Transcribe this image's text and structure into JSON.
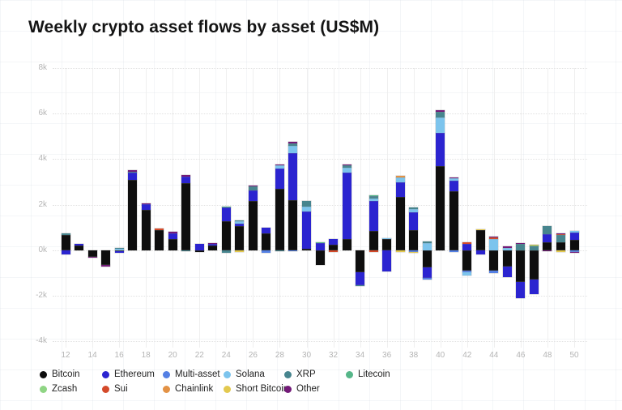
{
  "title": "Weekly crypto asset flows by asset (US$M)",
  "chart_data": {
    "type": "bar",
    "stacked": true,
    "title": "Weekly crypto asset flows by asset (US$M)",
    "units": "US$M",
    "x_axis": "week number",
    "x": [
      12,
      13,
      14,
      15,
      16,
      17,
      18,
      19,
      20,
      21,
      22,
      23,
      24,
      25,
      26,
      27,
      28,
      29,
      30,
      31,
      32,
      33,
      34,
      35,
      36,
      37,
      38,
      39,
      40,
      41,
      42,
      43,
      44,
      45,
      46,
      47,
      48,
      49,
      50
    ],
    "x_tick_labels": [
      12,
      14,
      16,
      18,
      20,
      22,
      24,
      26,
      28,
      30,
      32,
      34,
      36,
      38,
      40,
      42,
      44,
      46,
      48,
      50
    ],
    "ylim": [
      -4000,
      8000
    ],
    "y_ticks": [
      {
        "value": 8000,
        "label": "8k"
      },
      {
        "value": 6000,
        "label": "6k"
      },
      {
        "value": 4000,
        "label": "4k"
      },
      {
        "value": 2000,
        "label": "2k"
      },
      {
        "value": 0,
        "label": "0k"
      },
      {
        "value": -2000,
        "label": "-2k"
      },
      {
        "value": -4000,
        "label": "-4k"
      }
    ],
    "grid": true,
    "legend_position": "bottom",
    "series": [
      {
        "name": "Bitcoin",
        "color": "#0e0e0e",
        "values": [
          670,
          200,
          -290,
          -670,
          -30,
          3100,
          1780,
          880,
          470,
          2950,
          -70,
          200,
          1280,
          1050,
          2150,
          730,
          2700,
          2200,
          50,
          -650,
          240,
          500,
          -980,
          850,
          490,
          2330,
          870,
          -770,
          3680,
          2590,
          -900,
          880,
          -900,
          -720,
          -1400,
          -1300,
          330,
          350,
          440
        ]
      },
      {
        "name": "Ethereum",
        "color": "#2b24d0",
        "values": [
          -200,
          70,
          0,
          0,
          -80,
          300,
          230,
          0,
          270,
          280,
          270,
          90,
          600,
          130,
          470,
          260,
          900,
          2050,
          1650,
          300,
          230,
          2900,
          -550,
          1300,
          -950,
          640,
          790,
          -450,
          1470,
          470,
          280,
          -180,
          0,
          -450,
          -700,
          -650,
          370,
          0,
          340
        ]
      },
      {
        "name": "Multi-asset",
        "color": "#5480e4",
        "values": [
          0,
          0,
          0,
          0,
          0,
          0,
          0,
          0,
          0,
          0,
          0,
          0,
          0,
          0,
          0,
          -130,
          0,
          -50,
          0,
          0,
          0,
          0,
          0,
          0,
          0,
          0,
          -80,
          -80,
          0,
          -100,
          -80,
          0,
          -100,
          0,
          0,
          0,
          0,
          0,
          -100
        ]
      },
      {
        "name": "Solana",
        "color": "#7cc4ed",
        "values": [
          0,
          0,
          0,
          0,
          50,
          0,
          0,
          0,
          0,
          0,
          0,
          0,
          0,
          80,
          0,
          0,
          120,
          320,
          200,
          0,
          0,
          220,
          0,
          120,
          50,
          230,
          150,
          300,
          680,
          100,
          -120,
          0,
          500,
          100,
          0,
          0,
          0,
          0,
          60
        ]
      },
      {
        "name": "XRP",
        "color": "#47858e",
        "values": [
          60,
          0,
          0,
          0,
          60,
          50,
          0,
          0,
          0,
          -60,
          0,
          0,
          -120,
          50,
          170,
          0,
          -60,
          120,
          250,
          0,
          0,
          120,
          -50,
          100,
          0,
          0,
          60,
          80,
          240,
          0,
          0,
          0,
          0,
          0,
          280,
          150,
          350,
          300,
          0
        ]
      },
      {
        "name": "Litecoin",
        "color": "#56b689",
        "values": [
          0,
          0,
          0,
          0,
          0,
          0,
          0,
          0,
          0,
          0,
          0,
          0,
          40,
          0,
          0,
          0,
          0,
          0,
          0,
          30,
          0,
          0,
          0,
          40,
          0,
          0,
          0,
          0,
          0,
          0,
          0,
          0,
          0,
          0,
          0,
          40,
          0,
          0,
          0
        ]
      },
      {
        "name": "Zcash",
        "color": "#8fd584",
        "values": [
          0,
          0,
          0,
          0,
          0,
          0,
          0,
          0,
          0,
          0,
          0,
          0,
          0,
          0,
          0,
          0,
          0,
          0,
          0,
          0,
          0,
          0,
          0,
          0,
          0,
          0,
          0,
          0,
          0,
          0,
          0,
          0,
          0,
          0,
          0,
          0,
          0,
          0,
          0
        ]
      },
      {
        "name": "Sui",
        "color": "#d44a2a",
        "values": [
          0,
          0,
          0,
          0,
          0,
          0,
          0,
          70,
          0,
          0,
          0,
          0,
          0,
          0,
          0,
          0,
          0,
          0,
          0,
          0,
          -70,
          0,
          0,
          -70,
          0,
          0,
          0,
          0,
          0,
          0,
          50,
          0,
          50,
          0,
          0,
          0,
          0,
          40,
          0
        ]
      },
      {
        "name": "Chainlink",
        "color": "#e39245",
        "values": [
          0,
          0,
          0,
          0,
          0,
          0,
          0,
          0,
          0,
          0,
          0,
          0,
          0,
          0,
          0,
          0,
          0,
          0,
          0,
          0,
          0,
          0,
          0,
          0,
          0,
          70,
          0,
          0,
          0,
          0,
          0,
          0,
          0,
          0,
          0,
          0,
          0,
          0,
          0
        ]
      },
      {
        "name": "Short Bitcoin",
        "color": "#e3c94f",
        "values": [
          0,
          0,
          0,
          0,
          0,
          0,
          0,
          0,
          0,
          0,
          0,
          0,
          0,
          -70,
          0,
          0,
          0,
          0,
          0,
          0,
          0,
          0,
          0,
          0,
          0,
          -70,
          -40,
          0,
          0,
          0,
          0,
          50,
          0,
          0,
          0,
          50,
          0,
          -70,
          0
        ]
      },
      {
        "name": "Other",
        "color": "#731a78",
        "values": [
          0,
          0,
          -30,
          -60,
          0,
          50,
          40,
          0,
          80,
          60,
          0,
          30,
          0,
          0,
          30,
          0,
          60,
          60,
          0,
          0,
          0,
          40,
          0,
          0,
          0,
          0,
          0,
          0,
          80,
          40,
          0,
          0,
          40,
          50,
          30,
          0,
          -60,
          30,
          -30
        ]
      }
    ]
  }
}
